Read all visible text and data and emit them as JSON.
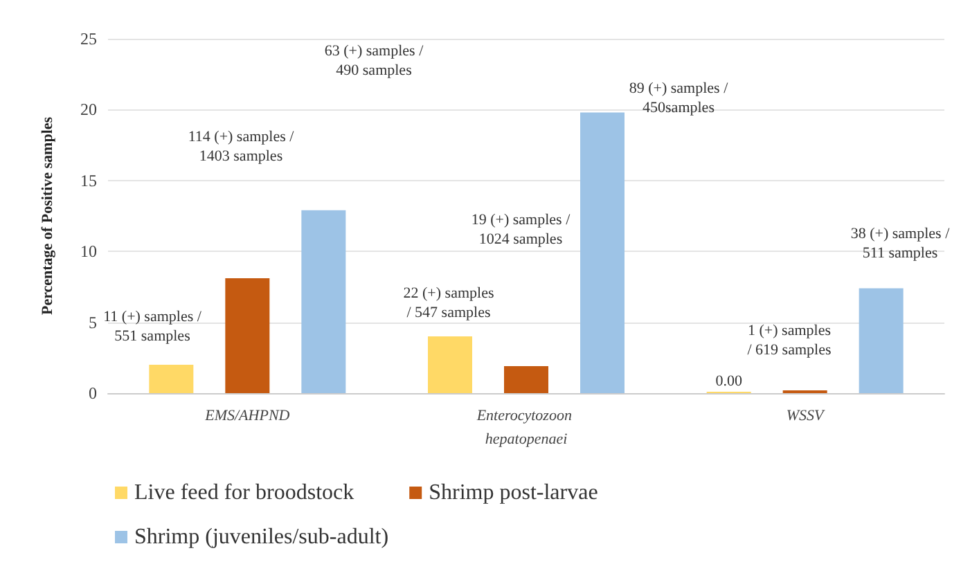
{
  "chart_data": {
    "type": "bar",
    "ylabel": "Percentage of Positive samples",
    "categories": [
      "EMS/AHPND",
      "Enterocytozoon hepatopenaei",
      "WSSV"
    ],
    "series": [
      {
        "name": "Live feed for broodstock",
        "color": "#ffd966",
        "values": [
          2.0,
          4.0,
          0
        ],
        "value_labels": [
          null,
          null,
          "0.00"
        ]
      },
      {
        "name": "Shrimp post-larvae",
        "color": "#c55a11",
        "values": [
          8.1,
          1.9,
          0.2
        ]
      },
      {
        "name": "Shrimp (juveniles/sub-adult)",
        "color": "#9dc3e6",
        "values": [
          12.9,
          19.8,
          7.4
        ]
      }
    ],
    "annotations": [
      "11 (+) samples /\n551 samples",
      "114 (+) samples /\n1403 samples",
      "63 (+) samples /\n490 samples",
      "22 (+) samples\n/ 547 samples",
      "19 (+) samples /\n1024 samples",
      "89 (+) samples /\n450samples",
      "1 (+) samples\n/ 619 samples",
      "38 (+) samples /\n511 samples"
    ],
    "ylim": [
      0,
      25
    ],
    "yticks": [
      0,
      5,
      10,
      15,
      20,
      25
    ],
    "grid": "y",
    "legend": "bottom"
  }
}
